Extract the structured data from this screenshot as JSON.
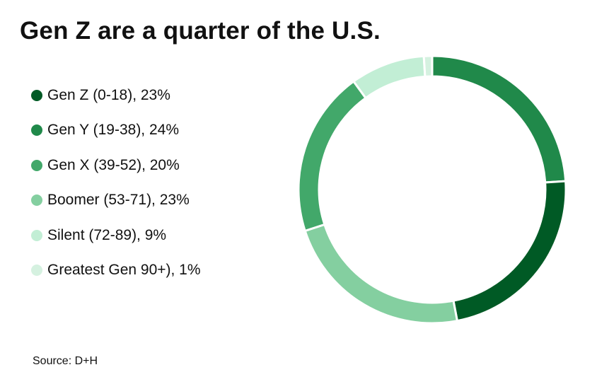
{
  "title": "Gen Z are a quarter of the U.S.",
  "source": "Source: D+H",
  "chart_data": {
    "type": "pie",
    "variant": "donut",
    "title": "Gen Z are a quarter of the U.S.",
    "legend_position": "left",
    "series": [
      {
        "label": "Gen Z (0-18), 23%",
        "name": "Gen Z (0-18)",
        "value": 23,
        "color": "#005a25"
      },
      {
        "label": "Gen Y (19-38), 24%",
        "name": "Gen Y (19-38)",
        "value": 24,
        "color": "#20894a"
      },
      {
        "label": "Gen X (39-52), 20%",
        "name": "Gen X (39-52)",
        "value": 20,
        "color": "#42a86a"
      },
      {
        "label": "Boomer (53-71), 23%",
        "name": "Boomer (53-71)",
        "value": 23,
        "color": "#84cfa0"
      },
      {
        "label": "Silent (72-89), 9%",
        "name": "Silent (72-89)",
        "value": 9,
        "color": "#c2eed5"
      },
      {
        "label": "Greatest Gen 90+), 1%",
        "name": "Greatest Gen 90+)",
        "value": 1,
        "color": "#d5f1e0"
      }
    ]
  }
}
